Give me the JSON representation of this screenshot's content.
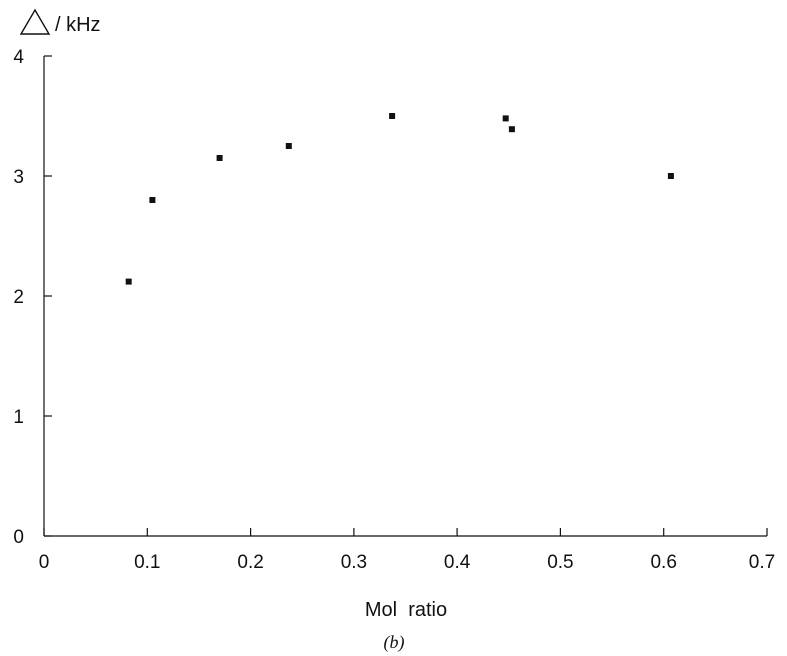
{
  "chart_data": {
    "type": "scatter",
    "ylabel": "/ kHz",
    "ylabel_symbol": "triangle",
    "xlabel": "Mol  ratio",
    "caption": "(b)",
    "xlim": [
      0,
      0.7
    ],
    "ylim": [
      0,
      4
    ],
    "x_ticks": [
      0,
      0.1,
      0.2,
      0.3,
      0.4,
      0.5,
      0.6,
      0.7
    ],
    "x_tick_labels": [
      "0",
      "0.1",
      "0.2",
      "0.3",
      "0.4",
      "0.5",
      "0.6",
      "0.7"
    ],
    "y_ticks": [
      0,
      1,
      2,
      3,
      4
    ],
    "y_tick_labels": [
      "0",
      "1",
      "2",
      "3",
      "4"
    ],
    "grid": false,
    "series": [
      {
        "x": [
          0.082,
          0.105,
          0.17,
          0.237,
          0.337,
          0.447,
          0.453,
          0.607
        ],
        "y": [
          2.12,
          2.8,
          3.15,
          3.25,
          3.5,
          3.48,
          3.39,
          3.0
        ]
      }
    ],
    "marker_color": "#111111"
  }
}
